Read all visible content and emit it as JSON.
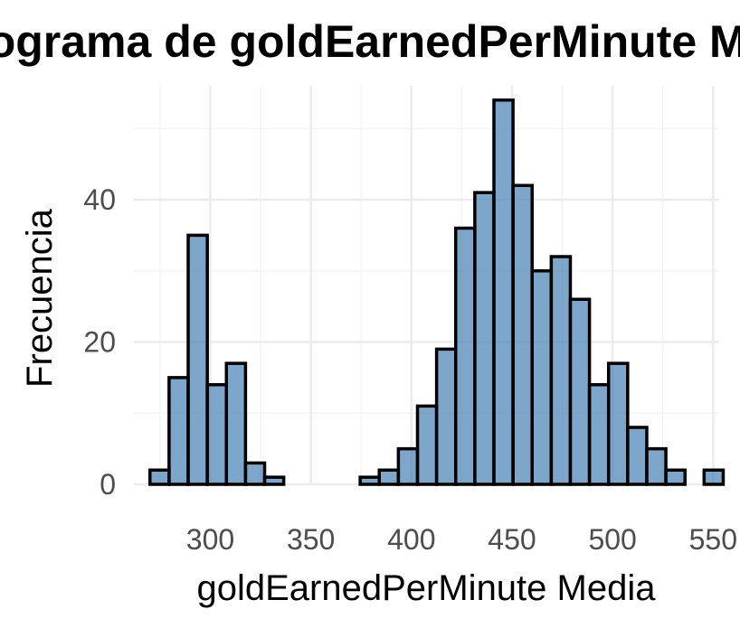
{
  "chart_data": {
    "type": "bar",
    "title": "Histograma de goldEarnedPerMinute Media",
    "xlabel": "goldEarnedPerMinute Media",
    "ylabel": "Frecuencia",
    "x_ticks": [
      300,
      350,
      400,
      450,
      500,
      550
    ],
    "y_ticks": [
      0,
      20,
      40
    ],
    "xlim": [
      262,
      553
    ],
    "ylim": [
      0,
      56
    ],
    "bin_width": 9.5,
    "bins_start": 270,
    "values": [
      2,
      15,
      35,
      14,
      17,
      3,
      1,
      0,
      0,
      0,
      0,
      1,
      2,
      5,
      11,
      19,
      36,
      41,
      54,
      42,
      30,
      32,
      26,
      14,
      17,
      8,
      5,
      2,
      0,
      2
    ],
    "bar_color": "#4682b4",
    "bar_edge_color": "#000000",
    "grid": true,
    "legend": "none"
  }
}
